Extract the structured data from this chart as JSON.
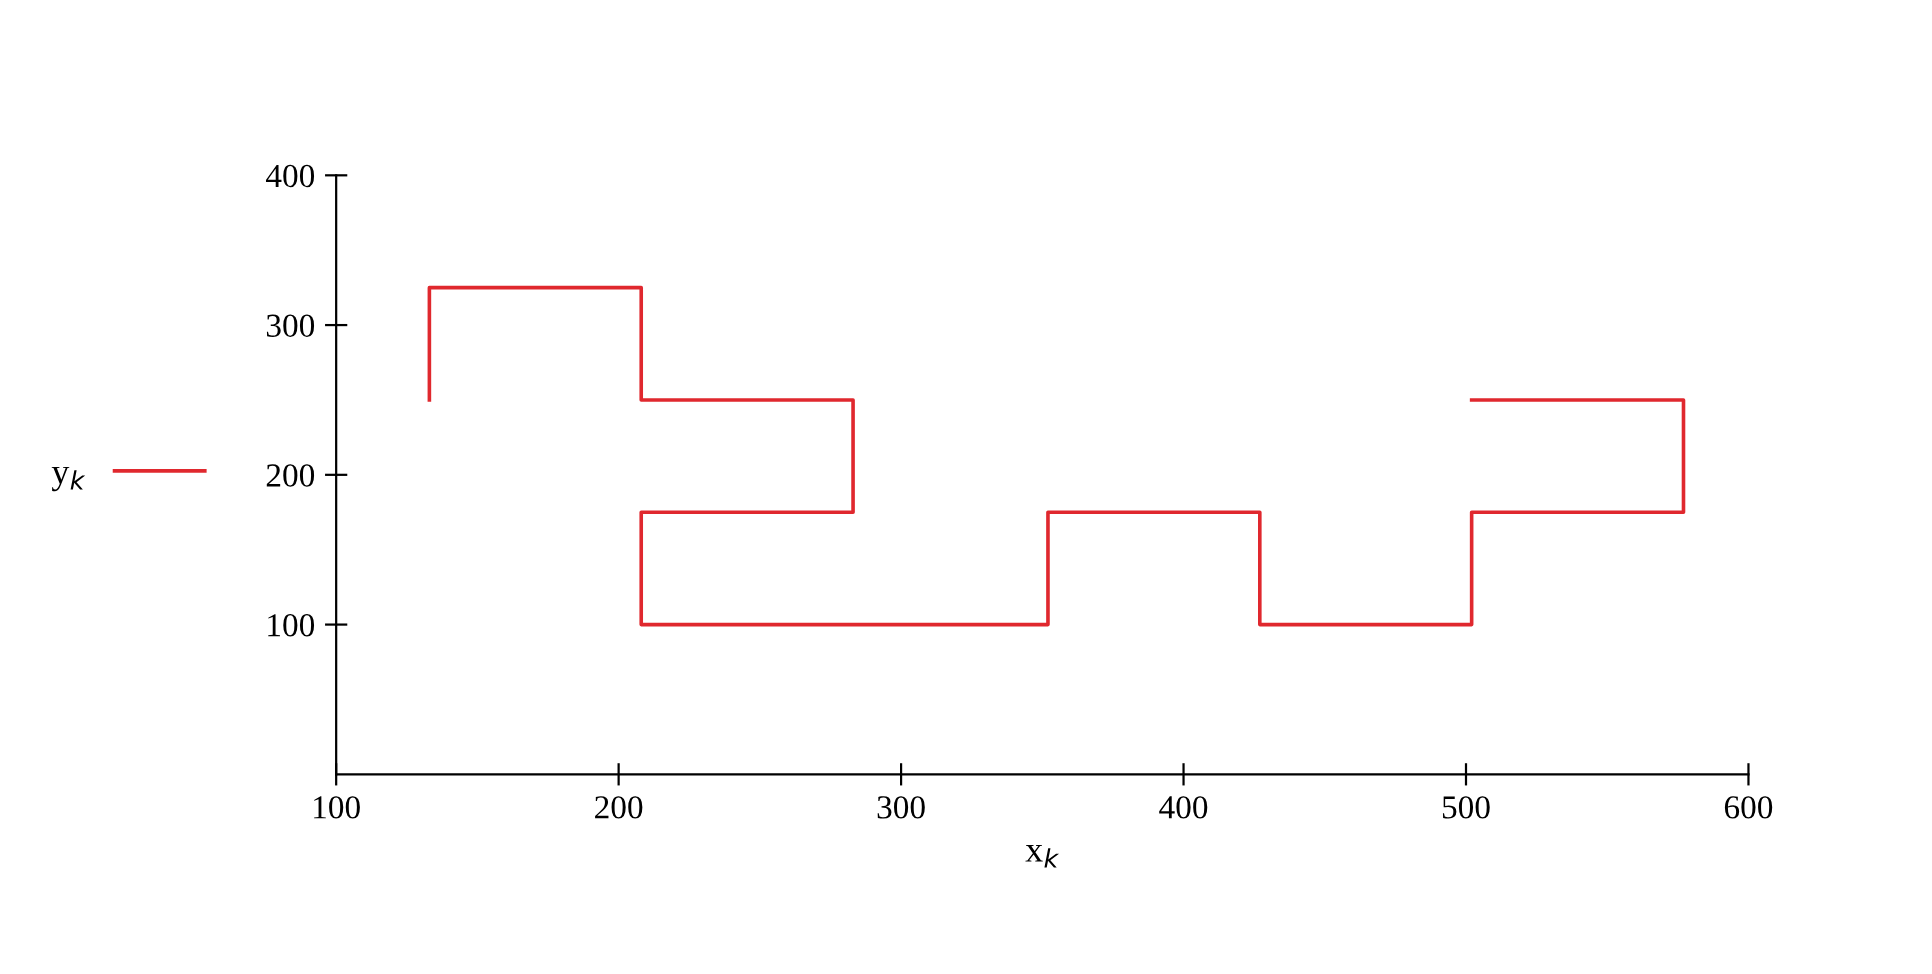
{
  "chart_data": {
    "type": "line",
    "xlabel": "x$_{k}$",
    "xlim": [
      100,
      600
    ],
    "xticks": [
      100,
      200,
      300,
      400,
      500,
      600
    ],
    "ylim": [
      0,
      400
    ],
    "yticks": [
      100,
      200,
      300,
      400
    ],
    "grid": false,
    "legend": "left",
    "line_style": "solid",
    "marker": "none",
    "series": [
      {
        "name": "y$_{k}$",
        "color": "#e0282e",
        "x": [
          133,
          133,
          208,
          208,
          283,
          283,
          208,
          208,
          352,
          352,
          427,
          427,
          502,
          502,
          577,
          577,
          502
        ],
        "values": [
          250,
          325,
          325,
          250,
          250,
          175,
          175,
          100,
          100,
          175,
          175,
          100,
          100,
          175,
          175,
          250,
          250
        ]
      }
    ]
  }
}
